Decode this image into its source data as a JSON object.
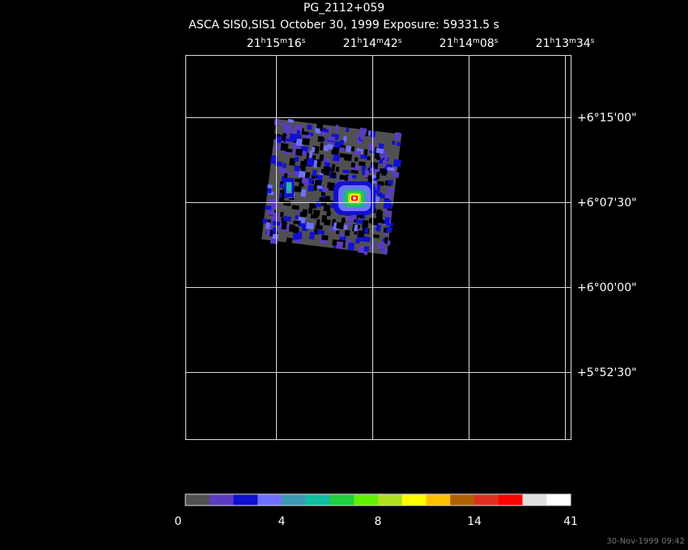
{
  "header": {
    "title": "PG_2112+059",
    "subtitle": "ASCA SIS0,SIS1 October 30, 1999 Exposure: 59331.5 s"
  },
  "ra_labels": [
    [
      "21",
      "h",
      "15",
      "m",
      "16",
      "s"
    ],
    [
      "21",
      "h",
      "14",
      "m",
      "42",
      "s"
    ],
    [
      "21",
      "h",
      "14",
      "m",
      "08",
      "s"
    ],
    [
      "21",
      "h",
      "13",
      "m",
      "34",
      "s"
    ]
  ],
  "dec_labels": [
    "+6°15'00\"",
    "+6°07'30\"",
    "+6°00'00\"",
    "+5°52'30\""
  ],
  "colorbar": {
    "colors": [
      "#505050",
      "#5a3cc0",
      "#1010d0",
      "#7070ff",
      "#3c9ab4",
      "#10c0a0",
      "#20d040",
      "#60f000",
      "#b0e020",
      "#ffff00",
      "#ffc000",
      "#b06000",
      "#e03020",
      "#ff0000",
      "#e0e0e0",
      "#ffffff"
    ],
    "labels": [
      "0",
      "4",
      "8",
      "14",
      "41"
    ]
  },
  "footer": "30-Nov-1999 09:42"
}
